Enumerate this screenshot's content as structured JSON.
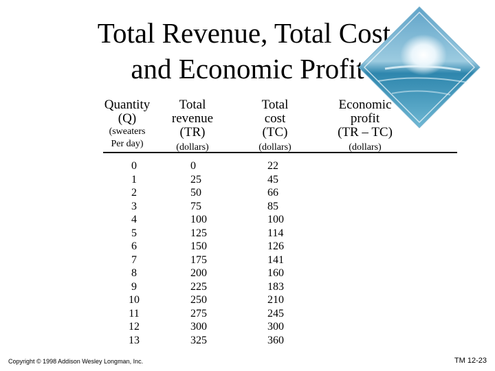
{
  "slide": {
    "title_line1": "Total Revenue, Total Cost,",
    "title_line2": "and Economic Profit"
  },
  "headers": {
    "quantity": {
      "line1": "Quantity",
      "line2": "(Q)",
      "line3": "(sweaters",
      "line4": "Per day)"
    },
    "revenue": {
      "line1": "Total",
      "line2": "revenue",
      "line3": "(TR)",
      "unit": "(dollars)"
    },
    "cost": {
      "line1": "Total",
      "line2": "cost",
      "line3": "(TC)",
      "unit": "(dollars)"
    },
    "profit": {
      "line1": "Economic",
      "line2": "profit",
      "line3": "(TR – TC)",
      "unit": "(dollars)"
    }
  },
  "table": {
    "quantity": [
      "0",
      "1",
      "2",
      "3",
      "4",
      "5",
      "6",
      "7",
      "8",
      "9",
      "10",
      "11",
      "12",
      "13"
    ],
    "total_revenue": [
      "0",
      "25",
      "50",
      "75",
      "100",
      "125",
      "150",
      "175",
      "200",
      "225",
      "250",
      "275",
      "300",
      "325"
    ],
    "total_cost": [
      "22",
      "45",
      "66",
      "85",
      "100",
      "114",
      "126",
      "141",
      "160",
      "183",
      "210",
      "245",
      "300",
      "360"
    ]
  },
  "footer": {
    "copyright": "Copyright © 1998 Addison Wesley Longman, Inc.",
    "slide_number": "TM 12-23"
  }
}
